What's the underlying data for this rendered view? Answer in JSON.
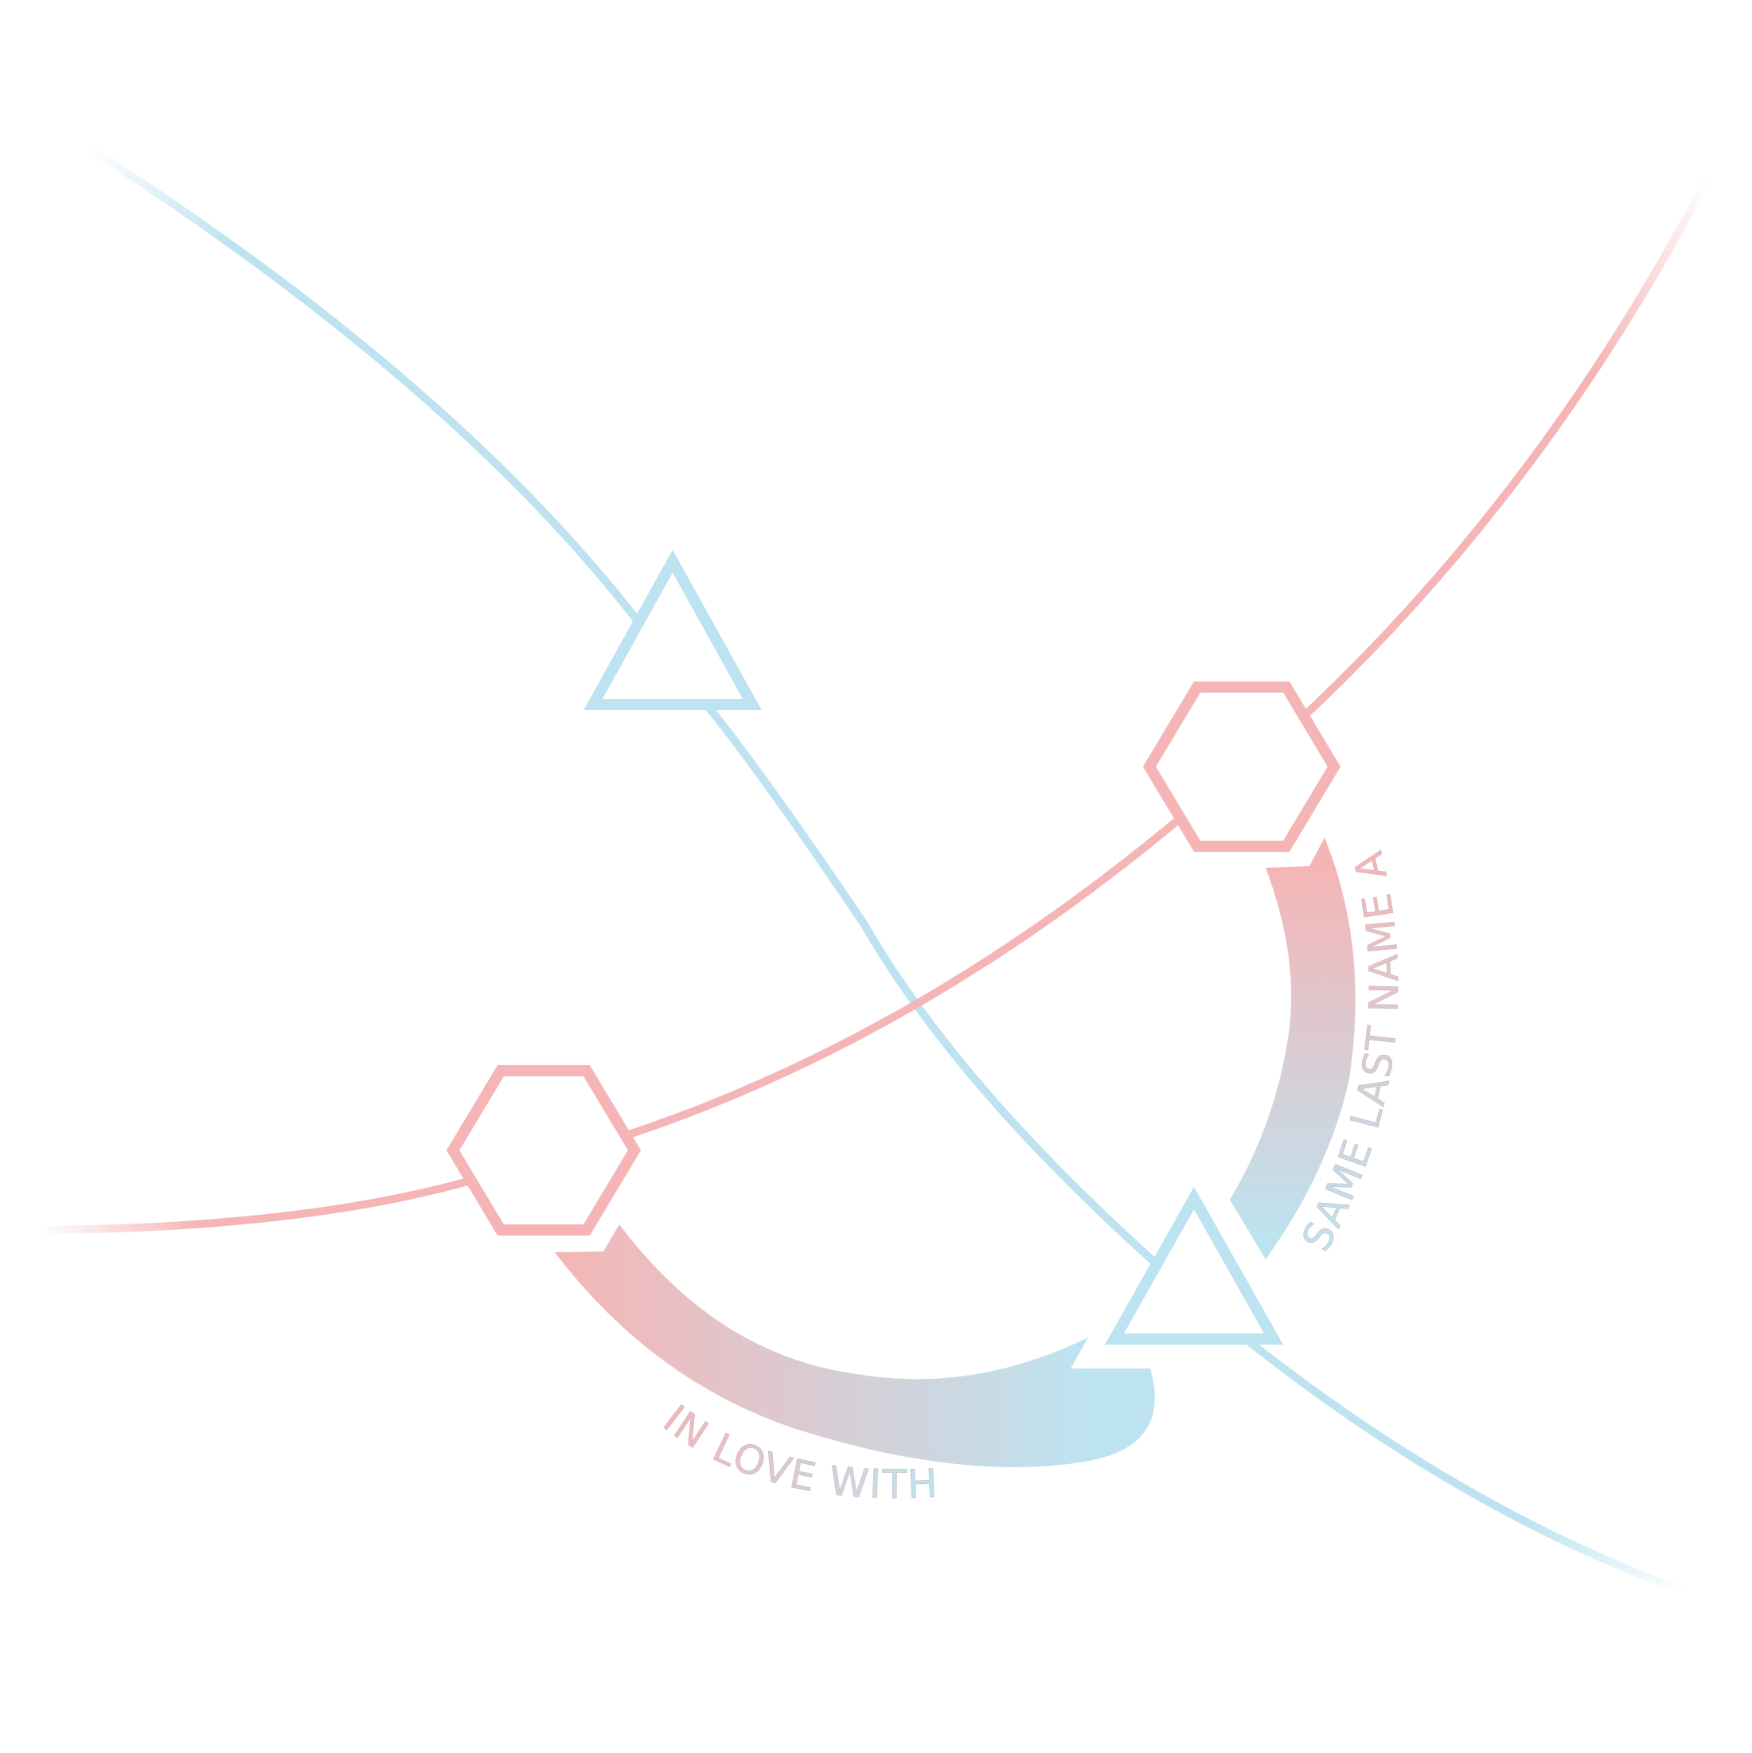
{
  "diagram": {
    "colors": {
      "blue": "#bde3f0",
      "pink": "#f5b5b6",
      "background": "#ffffff"
    },
    "nodes": [
      {
        "id": "triangle-top",
        "shape": "triangle",
        "color": "blue"
      },
      {
        "id": "triangle-bottom",
        "shape": "triangle",
        "color": "blue"
      },
      {
        "id": "hexagon-right",
        "shape": "hexagon",
        "color": "pink"
      },
      {
        "id": "hexagon-left",
        "shape": "hexagon",
        "color": "pink"
      }
    ],
    "relations": [
      {
        "from": "hexagon-left",
        "to": "triangle-bottom",
        "label": "IN LOVE WITH"
      },
      {
        "from": "hexagon-right",
        "to": "triangle-bottom",
        "label": "SAME LAST NAME AS"
      }
    ]
  }
}
